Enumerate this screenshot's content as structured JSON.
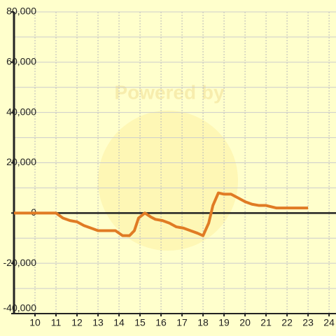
{
  "chart_data": {
    "type": "line",
    "watermark": "Powered by",
    "x": [
      9,
      11,
      11.33,
      11.67,
      12,
      12.33,
      12.67,
      13,
      13.33,
      13.83,
      14.17,
      14.5,
      14.73,
      14.93,
      15.23,
      15.5,
      15.73,
      16.07,
      16.4,
      16.73,
      17.07,
      17.4,
      17.73,
      18,
      18.27,
      18.47,
      18.73,
      19,
      19.33,
      19.67,
      20,
      20.33,
      20.67,
      21,
      21.5,
      23
    ],
    "series": [
      {
        "color": "#e07b24",
        "values": [
          0,
          0,
          -2000,
          -3000,
          -3500,
          -5000,
          -6000,
          -7000,
          -7000,
          -7000,
          -9000,
          -9000,
          -7000,
          -2000,
          0,
          -1500,
          -2500,
          -3000,
          -4000,
          -5500,
          -6000,
          -7000,
          -8000,
          -9000,
          -4000,
          3000,
          8000,
          7500,
          7500,
          6000,
          4500,
          3500,
          3000,
          3000,
          2000,
          2000
        ]
      }
    ],
    "xlim": [
      9,
      24.33
    ],
    "ylim": [
      -40000,
      80000
    ],
    "xticks": [
      10,
      11,
      12,
      13,
      14,
      15,
      16,
      17,
      18,
      19,
      20,
      21,
      22,
      23,
      24
    ],
    "yticks": [
      {
        "value": -40000,
        "label": "-40,000"
      },
      {
        "value": -20000,
        "label": "-20,000"
      },
      0,
      {
        "value": 20000,
        "label": "20,000"
      },
      {
        "value": 40000,
        "label": "40,000"
      },
      {
        "value": 60000,
        "label": "60,000"
      },
      {
        "value": 80000,
        "label": "80,000"
      }
    ],
    "y_minor_ticks": [
      -30000,
      -10000,
      10000,
      30000,
      50000,
      70000
    ],
    "grid": true
  }
}
